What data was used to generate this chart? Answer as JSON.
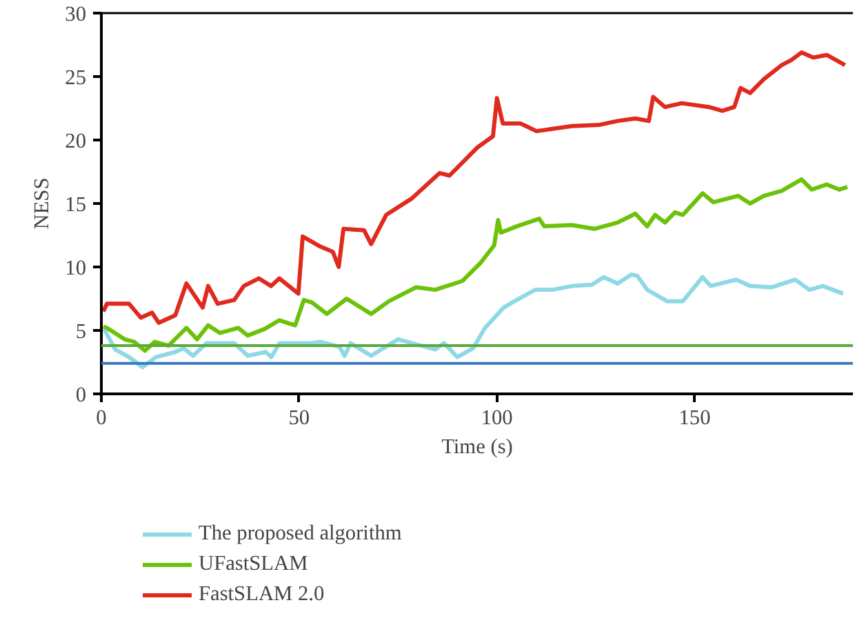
{
  "chart_data": {
    "type": "line",
    "xlabel": "Time (s)",
    "ylabel": "NESS",
    "xlim": [
      0,
      190
    ],
    "ylim": [
      0,
      30
    ],
    "xticks": [
      0,
      50,
      100,
      150
    ],
    "yticks": [
      0,
      5,
      10,
      15,
      20,
      25,
      30
    ],
    "grid": false,
    "legend": "bottom",
    "marker": "none",
    "line_style": "solid",
    "series": [
      {
        "name": "The proposed algorithm",
        "color": "#8fd8e6",
        "x": [
          0.7,
          3.5,
          7,
          10.4,
          13.8,
          18.7,
          20.8,
          23.2,
          26.6,
          33.6,
          37,
          41.5,
          43,
          45,
          48.4,
          53.3,
          55.4,
          60.2,
          61.5,
          63,
          68.2,
          75,
          78.5,
          84.4,
          86.6,
          90,
          94,
          97,
          101.7,
          105,
          109.7,
          114,
          119,
          124,
          127,
          130.5,
          134,
          135.5,
          138,
          143,
          147,
          152,
          154,
          160.5,
          164,
          169.5,
          175.4,
          179,
          182.4,
          187.5
        ],
        "values": [
          5.1,
          3.5,
          2.9,
          2.1,
          2.9,
          3.3,
          3.6,
          3.0,
          4.0,
          4.0,
          3.0,
          3.3,
          2.9,
          4.0,
          4.0,
          4.0,
          4.1,
          3.7,
          3.0,
          4.0,
          3.0,
          4.3,
          4.0,
          3.5,
          4.0,
          2.9,
          3.6,
          5.2,
          6.8,
          7.4,
          8.2,
          8.2,
          8.5,
          8.6,
          9.2,
          8.7,
          9.4,
          9.3,
          8.2,
          7.3,
          7.3,
          9.2,
          8.5,
          9.0,
          8.5,
          8.4,
          9.0,
          8.2,
          8.5,
          7.9
        ]
      },
      {
        "name": "UFastSLAM",
        "color": "#6cc20a",
        "x": [
          0.5,
          1.4,
          5.9,
          8.3,
          11,
          13.5,
          17,
          21.5,
          24.2,
          27,
          30,
          34.6,
          37,
          41.2,
          45,
          49,
          51.2,
          53.3,
          57,
          62,
          68.2,
          72.7,
          79.6,
          84.4,
          91.3,
          95.8,
          99.3,
          100.3,
          101,
          105,
          110.7,
          112,
          119,
          124.6,
          130.5,
          135,
          138,
          140,
          142.5,
          145,
          147,
          152,
          154.7,
          161,
          164,
          167.5,
          172,
          177,
          179.6,
          183.4,
          186.5,
          188.6
        ],
        "values": [
          5.3,
          5.2,
          4.3,
          4.1,
          3.4,
          4.1,
          3.8,
          5.2,
          4.3,
          5.4,
          4.8,
          5.2,
          4.6,
          5.1,
          5.8,
          5.4,
          7.4,
          7.2,
          6.3,
          7.5,
          6.3,
          7.3,
          8.4,
          8.2,
          8.9,
          10.3,
          11.7,
          13.7,
          12.7,
          13.2,
          13.8,
          13.2,
          13.3,
          13.0,
          13.5,
          14.2,
          13.2,
          14.1,
          13.5,
          14.3,
          14.1,
          15.8,
          15.1,
          15.6,
          15.0,
          15.6,
          16.0,
          16.9,
          16.1,
          16.5,
          16.1,
          16.3
        ]
      },
      {
        "name": "FastSLAM 2.0",
        "color": "#e02a1f",
        "x": [
          0.5,
          1.4,
          7,
          10,
          12.8,
          14.5,
          18.7,
          21.5,
          25.6,
          27,
          29.4,
          33.6,
          36,
          39.8,
          42.9,
          45,
          49.8,
          50.9,
          55.4,
          58.5,
          60,
          61.2,
          66.4,
          68.2,
          72,
          78.5,
          85.5,
          88,
          95,
          99,
          100,
          101.5,
          106,
          110,
          119,
          126,
          130.5,
          135,
          138.4,
          139.5,
          142.5,
          146.7,
          153.6,
          157,
          160,
          161.6,
          164,
          167.5,
          172,
          174.4,
          177,
          180,
          183.4,
          188
        ],
        "values": [
          6.5,
          7.1,
          7.1,
          6.0,
          6.4,
          5.6,
          6.2,
          8.7,
          6.8,
          8.5,
          7.1,
          7.4,
          8.5,
          9.1,
          8.5,
          9.1,
          7.9,
          12.4,
          11.6,
          11.2,
          10.0,
          13.0,
          12.9,
          11.8,
          14.1,
          15.4,
          17.4,
          17.2,
          19.4,
          20.3,
          23.3,
          21.3,
          21.3,
          20.7,
          21.1,
          21.2,
          21.5,
          21.7,
          21.5,
          23.4,
          22.6,
          22.9,
          22.6,
          22.3,
          22.6,
          24.1,
          23.7,
          24.8,
          25.9,
          26.3,
          26.9,
          26.5,
          26.7,
          25.9
        ]
      }
    ],
    "ref_lines": [
      {
        "axis": "y",
        "value": 3.8,
        "label": null,
        "color": "#5aaa3c"
      },
      {
        "axis": "y",
        "value": 2.4,
        "label": null,
        "color": "#3a78c0"
      }
    ]
  }
}
